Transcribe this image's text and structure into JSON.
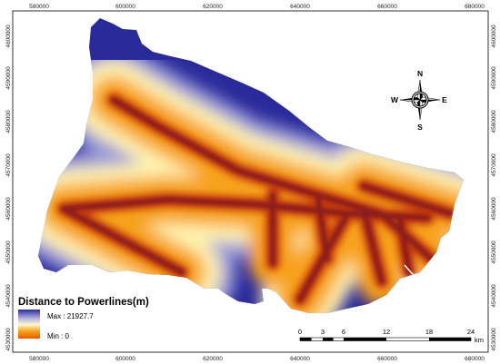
{
  "map": {
    "legend": {
      "title": "Distance to Powerlines(m)",
      "max_label": "Max : 21927.7",
      "min_label": "Min : 0",
      "max_value": 21927.7,
      "min_value": 0,
      "colors": {
        "far": "#2a2a9a",
        "mid_far": "#9a9ad8",
        "mid": "#fff3b0",
        "near_mid": "#f7a21b",
        "near": "#8b1a1a"
      }
    },
    "x_ticks": [
      "580000",
      "600000",
      "620000",
      "640000",
      "660000",
      "680000"
    ],
    "y_ticks": [
      "4600000",
      "4590000",
      "4580000",
      "4570000",
      "4560000",
      "4550000",
      "4540000",
      "4530000"
    ],
    "north_arrow": {
      "n": "N",
      "s": "S",
      "e": "E",
      "w": "W"
    },
    "scale_bar": {
      "labels": [
        "0",
        "3",
        "6",
        "12",
        "18",
        "24"
      ],
      "unit": "km"
    }
  }
}
